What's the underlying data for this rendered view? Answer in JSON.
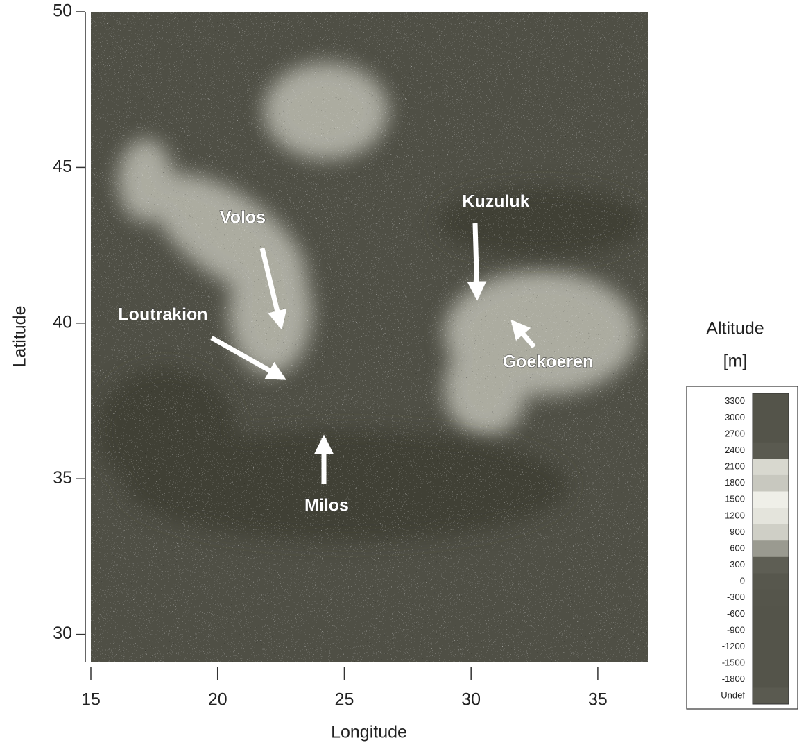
{
  "chart_data": {
    "type": "map",
    "xlabel": "Longitude",
    "ylabel": "Latitude",
    "xlim": [
      15,
      37
    ],
    "ylim": [
      29.1,
      50
    ],
    "xticks": [
      15,
      20,
      25,
      30,
      35
    ],
    "yticks": [
      30,
      35,
      40,
      45,
      50
    ],
    "annotations": [
      "Volos",
      "Kuzuluk",
      "Loutrakion",
      "Goekoeren",
      "Milos"
    ],
    "legend": {
      "title": "Altitude",
      "unit": "[m]",
      "labels": [
        "3300",
        "3000",
        "2700",
        "2400",
        "2100",
        "1800",
        "1500",
        "1200",
        "900",
        "600",
        "300",
        "0",
        "-300",
        "-600",
        "-900",
        "-1200",
        "-1500",
        "-1800",
        "Undef"
      ],
      "colors": [
        "#54544a",
        "#54544a",
        "#54544a",
        "#5a5a50",
        "#d8d8cf",
        "#c8c8bf",
        "#efefe8",
        "#e4e4dc",
        "#cfcfc6",
        "#9a9a90",
        "#5e5e54",
        "#57574d",
        "#55554b",
        "#54544a",
        "#54544a",
        "#54544a",
        "#54544a",
        "#54544a",
        "#5a5a50"
      ]
    }
  }
}
